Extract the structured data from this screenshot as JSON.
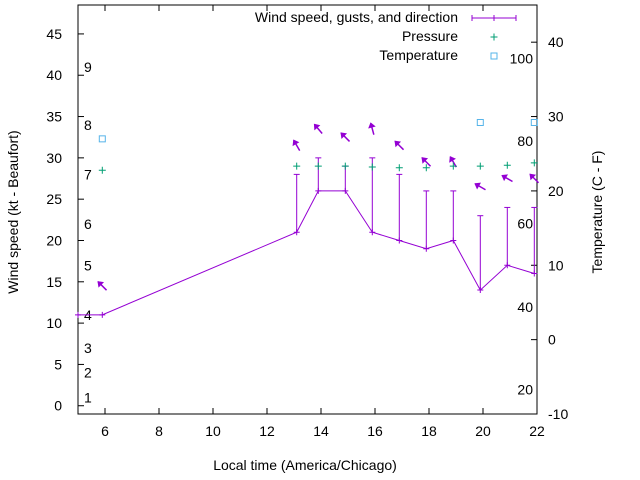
{
  "chart_data": {
    "type": "line",
    "xlabel": "Local time (America/Chicago)",
    "ylabel": "Wind speed (kt - Beaufort)",
    "y2label": "Temperature (C - F)",
    "xlim": [
      5,
      22
    ],
    "ylim": [
      -1,
      48.5
    ],
    "y2lim": [
      -10,
      45
    ],
    "x_ticks": [
      6,
      8,
      10,
      12,
      14,
      16,
      18,
      20,
      22
    ],
    "y_ticks": [
      0,
      5,
      10,
      15,
      20,
      25,
      30,
      35,
      40,
      45
    ],
    "y2_ticks": [
      -10,
      0,
      10,
      20,
      30,
      40
    ],
    "grid": false,
    "legend_position": "top-right",
    "beaufort_labels": [
      {
        "label": "1",
        "wind": 1
      },
      {
        "label": "2",
        "wind": 4
      },
      {
        "label": "3",
        "wind": 7
      },
      {
        "label": "4",
        "wind": 11
      },
      {
        "label": "5",
        "wind": 17
      },
      {
        "label": "6",
        "wind": 22
      },
      {
        "label": "7",
        "wind": 28
      },
      {
        "label": "8",
        "wind": 34
      },
      {
        "label": "9",
        "wind": 41
      }
    ],
    "fahrenheit_labels": [
      {
        "label": "20",
        "celsius": -6.7
      },
      {
        "label": "40",
        "celsius": 4.4
      },
      {
        "label": "60",
        "celsius": 15.6
      },
      {
        "label": "80",
        "celsius": 26.7
      },
      {
        "label": "100",
        "celsius": 37.8
      }
    ],
    "series": [
      {
        "name": "Wind speed, gusts, and direction",
        "color": "#9400d3",
        "x": [
          5,
          5.9,
          13.1,
          13.9,
          14.9,
          15.9,
          16.9,
          17.9,
          18.9,
          19.9,
          20.9,
          21.9
        ],
        "wind": [
          11,
          11,
          21,
          26,
          26,
          21,
          20,
          19,
          20,
          14,
          17,
          16
        ],
        "gust": [
          null,
          null,
          28,
          30,
          29,
          30,
          28,
          26,
          26,
          23,
          24,
          24
        ],
        "direction_deg": [
          null,
          315,
          330,
          320,
          315,
          345,
          315,
          315,
          330,
          300,
          300,
          315
        ]
      },
      {
        "name": "Pressure",
        "color": "#009e73",
        "x": [
          5.9,
          13.1,
          13.9,
          14.9,
          15.9,
          16.9,
          17.9,
          18.9,
          19.9,
          20.9,
          21.9
        ],
        "wind_axis_values": [
          28.5,
          29,
          29,
          29,
          28.9,
          28.8,
          28.8,
          29,
          29,
          29.1,
          29.4
        ]
      },
      {
        "name": "Temperature",
        "color": "#56b4e9",
        "x": [
          5.9,
          19.9,
          21.9
        ],
        "temperature_c": [
          27,
          29.2,
          29.2
        ]
      }
    ]
  }
}
